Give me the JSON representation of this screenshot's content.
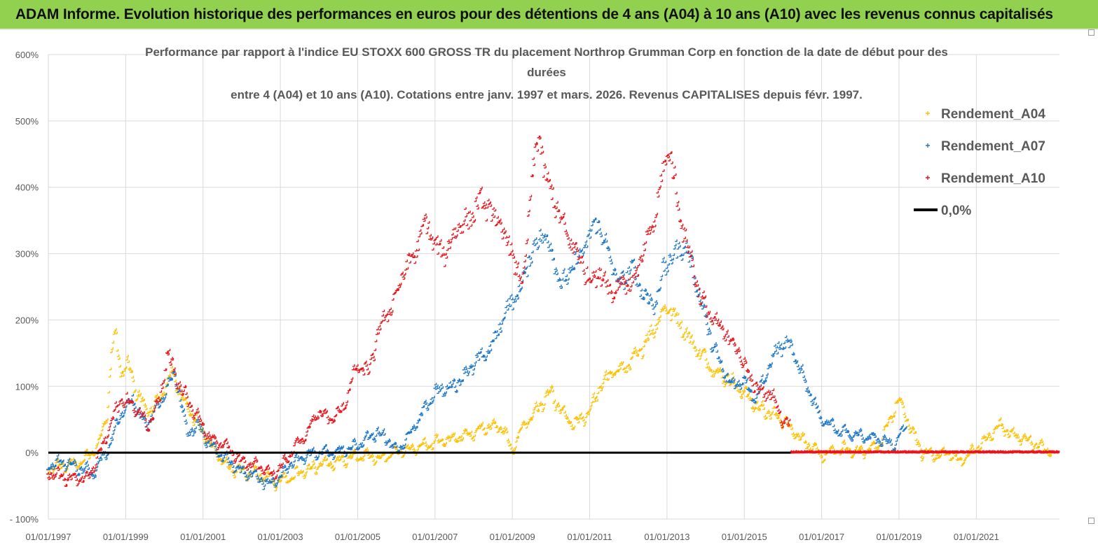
{
  "header": {
    "banner": "ADAM Informe. Evolution historique des performances en euros pour des détentions de 4 ans (A04) à 10 ans (A10) avec les revenus connus capitalisés"
  },
  "colors": {
    "banner_bg": "#92d050",
    "a04": "#ffc000",
    "a07": "#1f77c8",
    "a10": "#e8161c",
    "zero": "#000000",
    "grid": "#d9d9d9",
    "axis_text": "#595959"
  },
  "chart_data": {
    "type": "scatter",
    "title_lines": [
      "Performance par rapport à l'indice EU STOXX 600 GROSS TR  du placement Northrop Grumman Corp en fonction de la date de début pour des",
      "durées",
      "entre 4 (A04) et 10 ans (A10). Cotations entre janv. 1997 et mars. 2026. Revenus CAPITALISES depuis févr. 1997."
    ],
    "y_axis": {
      "min": -100,
      "max": 600,
      "step": 100,
      "tick_labels": [
        "- 100%",
        "0%",
        "100%",
        "200%",
        "300%",
        "400%",
        "500%",
        "600%"
      ]
    },
    "x_axis": {
      "min": 1997.0,
      "max": 2023.15,
      "tick_years": [
        1997,
        1999,
        2001,
        2003,
        2005,
        2007,
        2009,
        2011,
        2013,
        2015,
        2017,
        2019,
        2021
      ],
      "tick_labels": [
        "01/01/1997",
        "01/01/1999",
        "01/01/2001",
        "01/01/2003",
        "01/01/2005",
        "01/01/2007",
        "01/01/2009",
        "01/01/2011",
        "01/01/2013",
        "01/01/2015",
        "01/01/2017",
        "01/01/2019",
        "01/01/2021"
      ]
    },
    "legend": [
      {
        "key": "a04",
        "label": "Rendement_A04",
        "marker": "+"
      },
      {
        "key": "a07",
        "label": "Rendement_A07",
        "marker": "+"
      },
      {
        "key": "a10",
        "label": "Rendement_A10",
        "marker": "+"
      },
      {
        "key": "zero",
        "label": "0,0%",
        "marker": "line"
      }
    ],
    "series": [
      {
        "name": "Rendement_A04",
        "key": "a04",
        "x": [
          1997.0,
          1997.5,
          1997.9,
          1998.3,
          1998.55,
          1998.65,
          1998.75,
          1998.9,
          1999.1,
          1999.3,
          1999.6,
          1999.9,
          2000.2,
          2000.5,
          2000.8,
          2001.0,
          2001.3,
          2001.6,
          2002.0,
          2002.5,
          2002.8,
          2003.2,
          2003.6,
          2004.0,
          2004.5,
          2005.0,
          2005.3,
          2005.6,
          2006.0,
          2006.5,
          2007.0,
          2007.5,
          2008.0,
          2008.5,
          2008.8,
          2009.0,
          2009.3,
          2009.6,
          2010.0,
          2010.3,
          2010.6,
          2011.0,
          2011.3,
          2011.6,
          2012.0,
          2012.3,
          2012.6,
          2013.0,
          2013.3,
          2013.6,
          2014.0,
          2014.3,
          2014.6,
          2015.0,
          2015.3,
          2015.6,
          2016.0,
          2016.5,
          2017.0,
          2017.5,
          2018.0,
          2018.5,
          2018.8,
          2019.0,
          2019.3,
          2019.6,
          2020.0,
          2020.3,
          2020.6,
          2021.0,
          2021.3,
          2021.6,
          2022.0,
          2022.3,
          2022.6,
          2023.0
        ],
        "y": [
          -25,
          -20,
          -15,
          10,
          60,
          150,
          180,
          120,
          130,
          90,
          60,
          80,
          120,
          80,
          50,
          30,
          5,
          -20,
          -30,
          -35,
          -45,
          -40,
          -30,
          -20,
          -15,
          -5,
          -5,
          -10,
          0,
          5,
          15,
          20,
          30,
          40,
          35,
          0,
          40,
          60,
          90,
          60,
          40,
          60,
          100,
          120,
          130,
          150,
          180,
          220,
          200,
          170,
          140,
          120,
          110,
          90,
          70,
          60,
          50,
          20,
          -5,
          5,
          0,
          10,
          50,
          80,
          40,
          0,
          -5,
          0,
          -15,
          5,
          20,
          40,
          25,
          20,
          10,
          0
        ]
      },
      {
        "name": "Rendement_A07",
        "key": "a07",
        "x": [
          1997.0,
          1997.4,
          1997.8,
          1998.2,
          1998.6,
          1998.9,
          1999.2,
          1999.5,
          1999.8,
          2000.1,
          2000.3,
          2000.6,
          2000.9,
          2001.2,
          2001.6,
          2002.0,
          2002.4,
          2002.7,
          2003.0,
          2003.3,
          2003.7,
          2004.0,
          2004.5,
          2005.0,
          2005.5,
          2005.8,
          2006.0,
          2006.3,
          2006.6,
          2007.0,
          2007.5,
          2008.0,
          2008.5,
          2008.9,
          2009.2,
          2009.5,
          2009.8,
          2010.0,
          2010.3,
          2010.6,
          2010.9,
          2011.2,
          2011.5,
          2011.8,
          2012.1,
          2012.4,
          2012.7,
          2012.9,
          2013.2,
          2013.5,
          2013.8,
          2014.1,
          2014.4,
          2014.7,
          2015.0,
          2015.3,
          2015.6,
          2015.9,
          2016.2,
          2016.5,
          2017.0,
          2017.5,
          2018.0,
          2018.5,
          2018.9,
          2019.2
        ],
        "y": [
          -20,
          -15,
          -25,
          -30,
          10,
          60,
          80,
          40,
          60,
          100,
          120,
          30,
          40,
          10,
          -10,
          -30,
          -35,
          -50,
          -40,
          -15,
          -5,
          0,
          0,
          10,
          30,
          20,
          0,
          20,
          50,
          90,
          100,
          130,
          160,
          220,
          240,
          300,
          330,
          310,
          250,
          280,
          310,
          350,
          300,
          250,
          280,
          240,
          220,
          270,
          300,
          310,
          250,
          180,
          130,
          100,
          110,
          80,
          120,
          160,
          160,
          120,
          50,
          30,
          25,
          20,
          10,
          40
        ]
      },
      {
        "name": "Rendement_A10",
        "key": "a10",
        "x": [
          1997.0,
          1997.5,
          1998.0,
          1998.3,
          1998.6,
          1998.9,
          1999.2,
          1999.6,
          1999.9,
          2000.1,
          2000.4,
          2000.8,
          2001.2,
          2001.6,
          2002.0,
          2002.4,
          2002.8,
          2003.0,
          2003.3,
          2003.7,
          2004.0,
          2004.3,
          2004.6,
          2005.0,
          2005.3,
          2005.6,
          2005.9,
          2006.2,
          2006.5,
          2006.8,
          2007.0,
          2007.3,
          2007.6,
          2007.9,
          2008.2,
          2008.5,
          2008.8,
          2009.0,
          2009.3,
          2009.5,
          2009.7,
          2009.9,
          2010.1,
          2010.4,
          2010.7,
          2011.0,
          2011.3,
          2011.6,
          2011.9,
          2012.1,
          2012.4,
          2012.7,
          2012.9,
          2013.1,
          2013.3,
          2013.6,
          2013.9,
          2014.2,
          2014.5,
          2014.8,
          2015.1,
          2015.4,
          2015.7,
          2016.0,
          2016.2
        ],
        "y": [
          -30,
          -40,
          -40,
          -10,
          40,
          80,
          70,
          40,
          80,
          150,
          100,
          60,
          20,
          10,
          -15,
          -20,
          -35,
          -25,
          0,
          30,
          60,
          50,
          60,
          130,
          120,
          190,
          220,
          270,
          300,
          350,
          310,
          300,
          340,
          350,
          380,
          360,
          330,
          300,
          250,
          400,
          480,
          410,
          380,
          330,
          300,
          260,
          270,
          240,
          260,
          250,
          300,
          350,
          420,
          460,
          370,
          300,
          230,
          200,
          180,
          160,
          120,
          90,
          90,
          50,
          40
        ]
      },
      {
        "name": "0,0%",
        "key": "zero",
        "x": [
          1997.0,
          2016.2
        ],
        "y": [
          0,
          0
        ]
      }
    ],
    "tail_flat_from": 2016.2,
    "tail_flat_to": 2023.15,
    "grid": true,
    "legend_position": "top-right"
  }
}
